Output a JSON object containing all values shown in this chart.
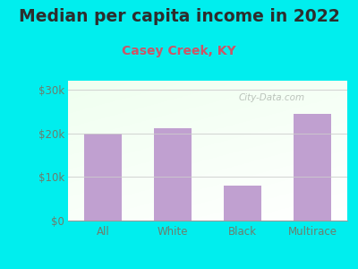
{
  "title": "Median per capita income in 2022",
  "subtitle": "Casey Creek, KY",
  "categories": [
    "All",
    "White",
    "Black",
    "Multirace"
  ],
  "values": [
    20000,
    21200,
    8000,
    24500
  ],
  "bar_color": "#c0a0d0",
  "background_color": "#00EEEE",
  "title_color": "#2d2d2d",
  "subtitle_color": "#cc5566",
  "tick_label_color": "#6d7d6d",
  "yticks": [
    0,
    10000,
    20000,
    30000
  ],
  "ytick_labels": [
    "$0",
    "$10k",
    "$20k",
    "$30k"
  ],
  "ylim": [
    0,
    32000
  ],
  "watermark": "City-Data.com",
  "title_fontsize": 13.5,
  "subtitle_fontsize": 10,
  "tick_fontsize": 8.5
}
